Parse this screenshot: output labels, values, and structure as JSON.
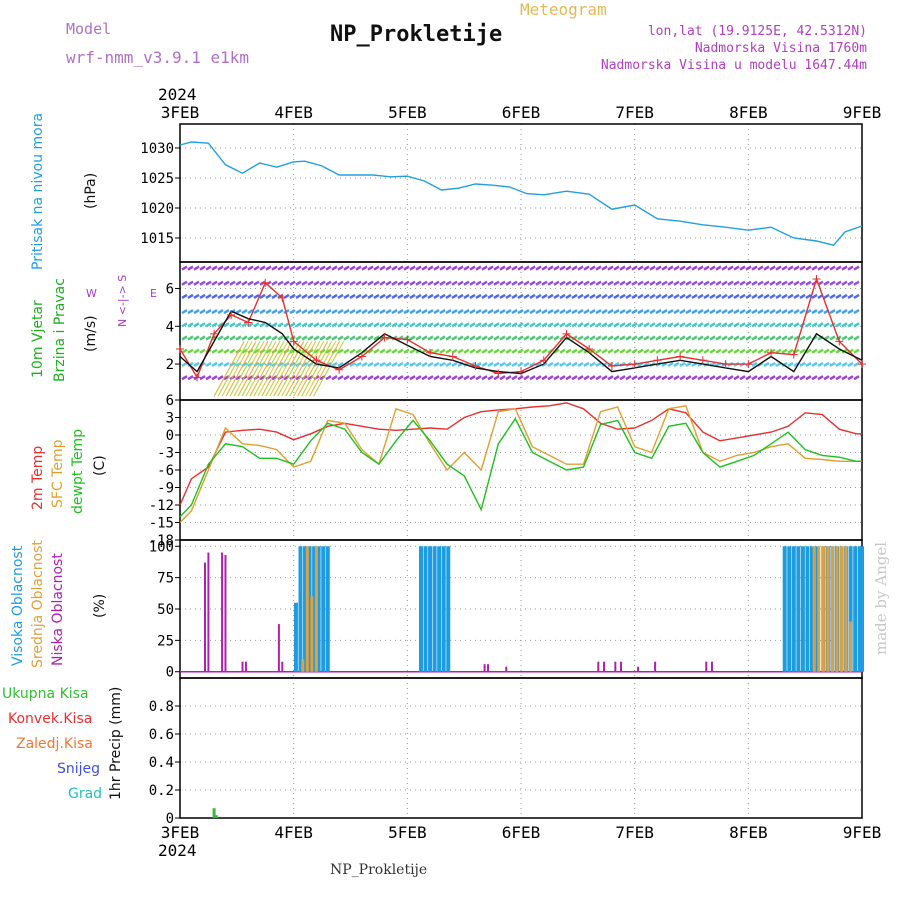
{
  "header": {
    "model_label": "Model",
    "model_name": "wrf-nmm_v3.9.1 e1km",
    "title": "NP_Prokletije",
    "meteogram_label": "Meteogram",
    "coords": "lon,lat (19.9125E, 42.5312N)",
    "elevation": "Nadmorska Visina 1760m",
    "model_elevation": "Nadmorska Visina u modelu 1647.44m"
  },
  "footer": {
    "station": "NP_Prokletije",
    "credit": "made by Angel"
  },
  "time_axis": {
    "year": "2024",
    "ticks": [
      "3FEB",
      "4FEB",
      "5FEB",
      "6FEB",
      "7FEB",
      "8FEB",
      "9FEB"
    ]
  },
  "colors": {
    "pressure": "#20a0e0",
    "temp2m": "#e83030",
    "sfc_temp": "#e0a030",
    "dewpoint": "#20c020",
    "high_cloud": "#1e9ce0",
    "mid_cloud": "#e0a040",
    "low_cloud": "#b020b0",
    "total_precip": "#30c030",
    "convective": "#e83030",
    "frozen": "#f07830",
    "snow": "#4050e0",
    "hail": "#20c0c0"
  },
  "chart_data": [
    {
      "type": "line",
      "panel": "pressure",
      "ylabel_1": "Pritisak na nivou mora",
      "ylabel_2": "(hPa)",
      "ylim": [
        1011,
        1034
      ],
      "yticks": [
        "1015",
        "1020",
        "1025",
        "1030"
      ],
      "x_days": [
        0,
        0.1,
        0.25,
        0.4,
        0.55,
        0.7,
        0.85,
        1.0,
        1.1,
        1.25,
        1.4,
        1.55,
        1.7,
        1.85,
        2.0,
        2.15,
        2.3,
        2.45,
        2.6,
        2.75,
        2.9,
        3.05,
        3.2,
        3.4,
        3.6,
        3.8,
        4.0,
        4.2,
        4.4,
        4.6,
        4.8,
        5.0,
        5.2,
        5.4,
        5.6,
        5.75,
        5.85,
        6.0
      ],
      "series": [
        {
          "values": [
            1030.5,
            1031,
            1030.8,
            1027.2,
            1025.8,
            1027.5,
            1026.8,
            1027.7,
            1027.8,
            1027,
            1025.5,
            1025.5,
            1025.5,
            1025.2,
            1025.3,
            1024.5,
            1023,
            1023.3,
            1024,
            1023.8,
            1023.5,
            1022.4,
            1022.2,
            1022.8,
            1022.3,
            1019.8,
            1020.5,
            1018.2,
            1017.8,
            1017.2,
            1016.8,
            1016.3,
            1016.8,
            1015,
            1014.5,
            1013.8,
            1016,
            1017
          ]
        }
      ]
    },
    {
      "type": "line",
      "panel": "wind",
      "ylabel_1": "10m Vjetar",
      "ylabel_2": "Brzina i Pravac",
      "ylabel_3": "(m/s)",
      "compass_label": "N <-|-> S",
      "compass_we_w": "W",
      "compass_we_e": "E",
      "ylim": [
        0.1,
        7.4
      ],
      "yticks": [
        "2",
        "4",
        "6"
      ],
      "x_days": [
        0,
        0.15,
        0.3,
        0.45,
        0.6,
        0.75,
        0.9,
        1.0,
        1.2,
        1.4,
        1.6,
        1.8,
        2.0,
        2.2,
        2.4,
        2.6,
        2.8,
        3.0,
        3.2,
        3.4,
        3.6,
        3.8,
        4.0,
        4.2,
        4.4,
        4.6,
        4.8,
        5.0,
        5.2,
        5.4,
        5.6,
        5.8,
        6.0
      ],
      "series": [
        {
          "values": [
            2.8,
            1.3,
            3.6,
            4.6,
            4.2,
            6.3,
            5.5,
            3.2,
            2.2,
            1.7,
            2.4,
            3.4,
            3.3,
            2.6,
            2.4,
            1.9,
            1.5,
            1.6,
            2.2,
            3.6,
            2.8,
            1.9,
            2.0,
            2.2,
            2.4,
            2.2,
            2.0,
            2.0,
            2.6,
            2.5,
            6.5,
            3.2,
            2.0
          ]
        },
        {
          "values": [
            2.4,
            1.6,
            3.2,
            4.8,
            4.4,
            4.2,
            3.6,
            2.8,
            2.0,
            1.8,
            2.6,
            3.6,
            3.0,
            2.4,
            2.2,
            1.8,
            1.6,
            1.5,
            2.0,
            3.4,
            2.6,
            1.6,
            1.8,
            2.0,
            2.2,
            2.0,
            1.8,
            1.6,
            2.4,
            1.6,
            3.6,
            2.8,
            2.2
          ]
        }
      ]
    },
    {
      "type": "line",
      "panel": "temperature",
      "ylabel_1": "2m Temp",
      "ylabel_2": "SFC Temp",
      "ylabel_3": "dewpt Temp",
      "ylabel_4": "(C)",
      "ylim": [
        -18,
        6
      ],
      "yticks": [
        "6",
        "3",
        "0",
        "-3",
        "-6",
        "-9",
        "-12",
        "-15",
        "-18"
      ],
      "x_days": [
        0,
        0.1,
        0.25,
        0.4,
        0.55,
        0.7,
        0.85,
        1.0,
        1.15,
        1.3,
        1.45,
        1.6,
        1.75,
        1.9,
        2.05,
        2.2,
        2.35,
        2.5,
        2.65,
        2.8,
        2.95,
        3.1,
        3.25,
        3.4,
        3.55,
        3.7,
        3.85,
        4.0,
        4.15,
        4.3,
        4.45,
        4.6,
        4.75,
        4.9,
        5.05,
        5.2,
        5.35,
        5.5,
        5.65,
        5.8,
        5.95,
        6.0
      ],
      "series": [
        {
          "name": "2m Temp",
          "values": [
            -12,
            -7.5,
            -5.5,
            0.5,
            0.8,
            1.0,
            0.5,
            -0.8,
            0.2,
            1.5,
            2.0,
            1.5,
            1.0,
            0.8,
            1.0,
            1.2,
            1.0,
            3.0,
            4.0,
            4.3,
            4.5,
            4.8,
            5.0,
            5.5,
            4.5,
            2.0,
            1.0,
            1.2,
            2.5,
            4.5,
            3.8,
            0.5,
            -1.0,
            -0.5,
            0,
            0.5,
            1.5,
            3.8,
            3.5,
            1.0,
            0.2,
            0.2
          ]
        },
        {
          "name": "SFC Temp",
          "values": [
            -15,
            -13,
            -6,
            1.2,
            -1.5,
            -1.8,
            -2.5,
            -5.5,
            -4.5,
            2.5,
            2.0,
            -2.5,
            -5.0,
            4.5,
            3.5,
            -1.5,
            -6.0,
            -3.0,
            -6.0,
            4.0,
            4.5,
            -2.0,
            -3.5,
            -5.0,
            -5.0,
            4.0,
            4.8,
            -2.0,
            -3.0,
            4.5,
            5.0,
            -3.0,
            -4.5,
            -3.5,
            -3.0,
            -2.0,
            -1.5,
            -4.0,
            -4.2,
            -4.5,
            -4.5,
            -4.5
          ]
        },
        {
          "name": "dewpt Temp",
          "values": [
            -14,
            -12,
            -5,
            -1.5,
            -2,
            -4,
            -4,
            -5,
            -1,
            2.0,
            1.0,
            -3,
            -5,
            -1,
            2.5,
            -1,
            -5,
            -7,
            -12.8,
            -1.5,
            2.8,
            -3.0,
            -4.5,
            -6,
            -5.5,
            1.8,
            2.5,
            -3,
            -4,
            1.5,
            2.0,
            -3,
            -5.5,
            -4.5,
            -3.5,
            -1.5,
            0.5,
            -2.5,
            -3.5,
            -3.8,
            -4.5,
            -4.5
          ]
        }
      ]
    },
    {
      "type": "bar",
      "panel": "cloud_cover",
      "ylabel_1": "Visoka Oblacnost",
      "ylabel_2": "Srednja Oblacnost",
      "ylabel_3": "Niska Oblacnost",
      "ylabel_4": "(%)",
      "ylim": [
        -5,
        105
      ],
      "yticks": [
        "100",
        "75",
        "50",
        "25",
        "0"
      ],
      "series": [
        {
          "name": "Visoka Oblacnost",
          "x_days": [
            1.02,
            1.06,
            1.1,
            1.14,
            1.18,
            1.22,
            1.26,
            1.3,
            2.12,
            2.16,
            2.2,
            2.24,
            2.28,
            2.32,
            2.36,
            5.32,
            5.36,
            5.4,
            5.44,
            5.48,
            5.52,
            5.56,
            5.6,
            5.66,
            5.7,
            5.74,
            5.78,
            5.82,
            5.86,
            5.9,
            5.94,
            5.98,
            6.0
          ],
          "values": [
            55,
            100,
            100,
            100,
            100,
            100,
            100,
            100,
            100,
            100,
            100,
            100,
            100,
            100,
            100,
            100,
            100,
            100,
            100,
            100,
            100,
            100,
            100,
            100,
            100,
            100,
            100,
            100,
            100,
            100,
            100,
            100,
            100
          ]
        },
        {
          "name": "Srednja Oblacnost",
          "x_days": [
            1.08,
            1.12,
            1.16,
            1.2,
            5.58,
            5.62,
            5.66,
            5.7,
            5.74,
            5.78,
            5.82,
            5.86,
            5.9
          ],
          "values": [
            10,
            100,
            60,
            100,
            100,
            100,
            100,
            100,
            100,
            100,
            100,
            100,
            40
          ]
        },
        {
          "name": "Niska Oblacnost",
          "x_days": [
            0.22,
            0.25,
            0.37,
            0.4,
            0.55,
            0.58,
            0.87,
            0.9,
            2.68,
            2.71,
            2.87,
            3.68,
            3.73,
            3.83,
            3.88,
            4.03,
            4.18,
            4.63,
            4.68
          ],
          "values": [
            87,
            95,
            95,
            93,
            8,
            8,
            38,
            8,
            6,
            6,
            4,
            8,
            8,
            8,
            8,
            4,
            8,
            8,
            8
          ]
        }
      ]
    },
    {
      "type": "bar",
      "panel": "precipitation",
      "legend": [
        "Ukupna Kisa",
        "Konvek.Kisa",
        "Zaledj.Kisa",
        "Snijeg",
        "Grad"
      ],
      "ylabel": "1hr Precip (mm)",
      "ylim": [
        0,
        1.0
      ],
      "yticks": [
        "0",
        "0.2",
        "0.4",
        "0.6",
        "0.8"
      ],
      "series": [
        {
          "name": "Ukupna Kisa",
          "x_days": [
            0.3,
            0.32
          ],
          "values": [
            0.07,
            0.02
          ]
        }
      ]
    }
  ]
}
